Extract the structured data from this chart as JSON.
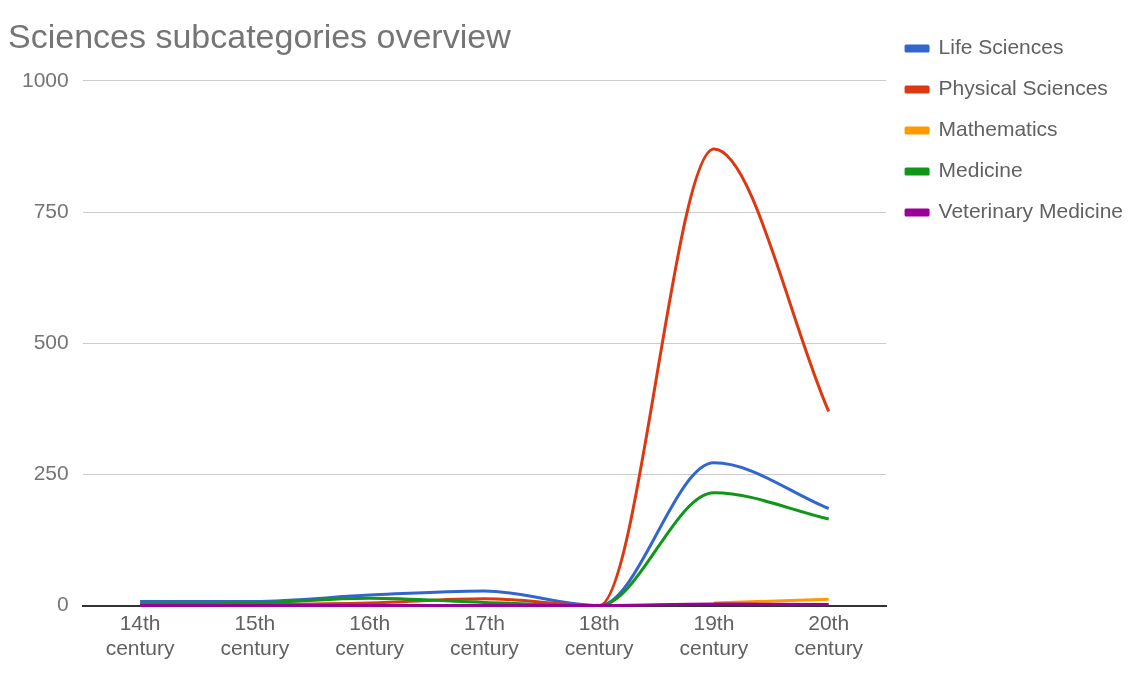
{
  "chart_data": {
    "type": "line",
    "title": "Sciences subcategories overview",
    "categories": [
      "14th century",
      "15th century",
      "16th century",
      "17th century",
      "18th century",
      "19th century",
      "20th century"
    ],
    "series": [
      {
        "name": "Life Sciences",
        "color": "#3366cc",
        "values": [
          8,
          8,
          20,
          28,
          0,
          272,
          185
        ]
      },
      {
        "name": "Physical Sciences",
        "color": "#dc3912",
        "values": [
          1,
          2,
          5,
          13,
          0,
          870,
          370
        ]
      },
      {
        "name": "Mathematics",
        "color": "#ff9900",
        "values": [
          null,
          null,
          null,
          null,
          null,
          5,
          12
        ]
      },
      {
        "name": "Medicine",
        "color": "#109618",
        "values": [
          3,
          5,
          14,
          6,
          0,
          215,
          165
        ]
      },
      {
        "name": "Veterinary Medicine",
        "color": "#990099",
        "values": [
          0,
          0,
          0,
          0,
          0,
          3,
          2
        ]
      }
    ],
    "ylim": [
      0,
      1000
    ],
    "yticks": [
      0,
      250,
      500,
      750,
      1000
    ],
    "grid": "y",
    "legend": "right",
    "marker": "none",
    "line_style": "solid"
  }
}
